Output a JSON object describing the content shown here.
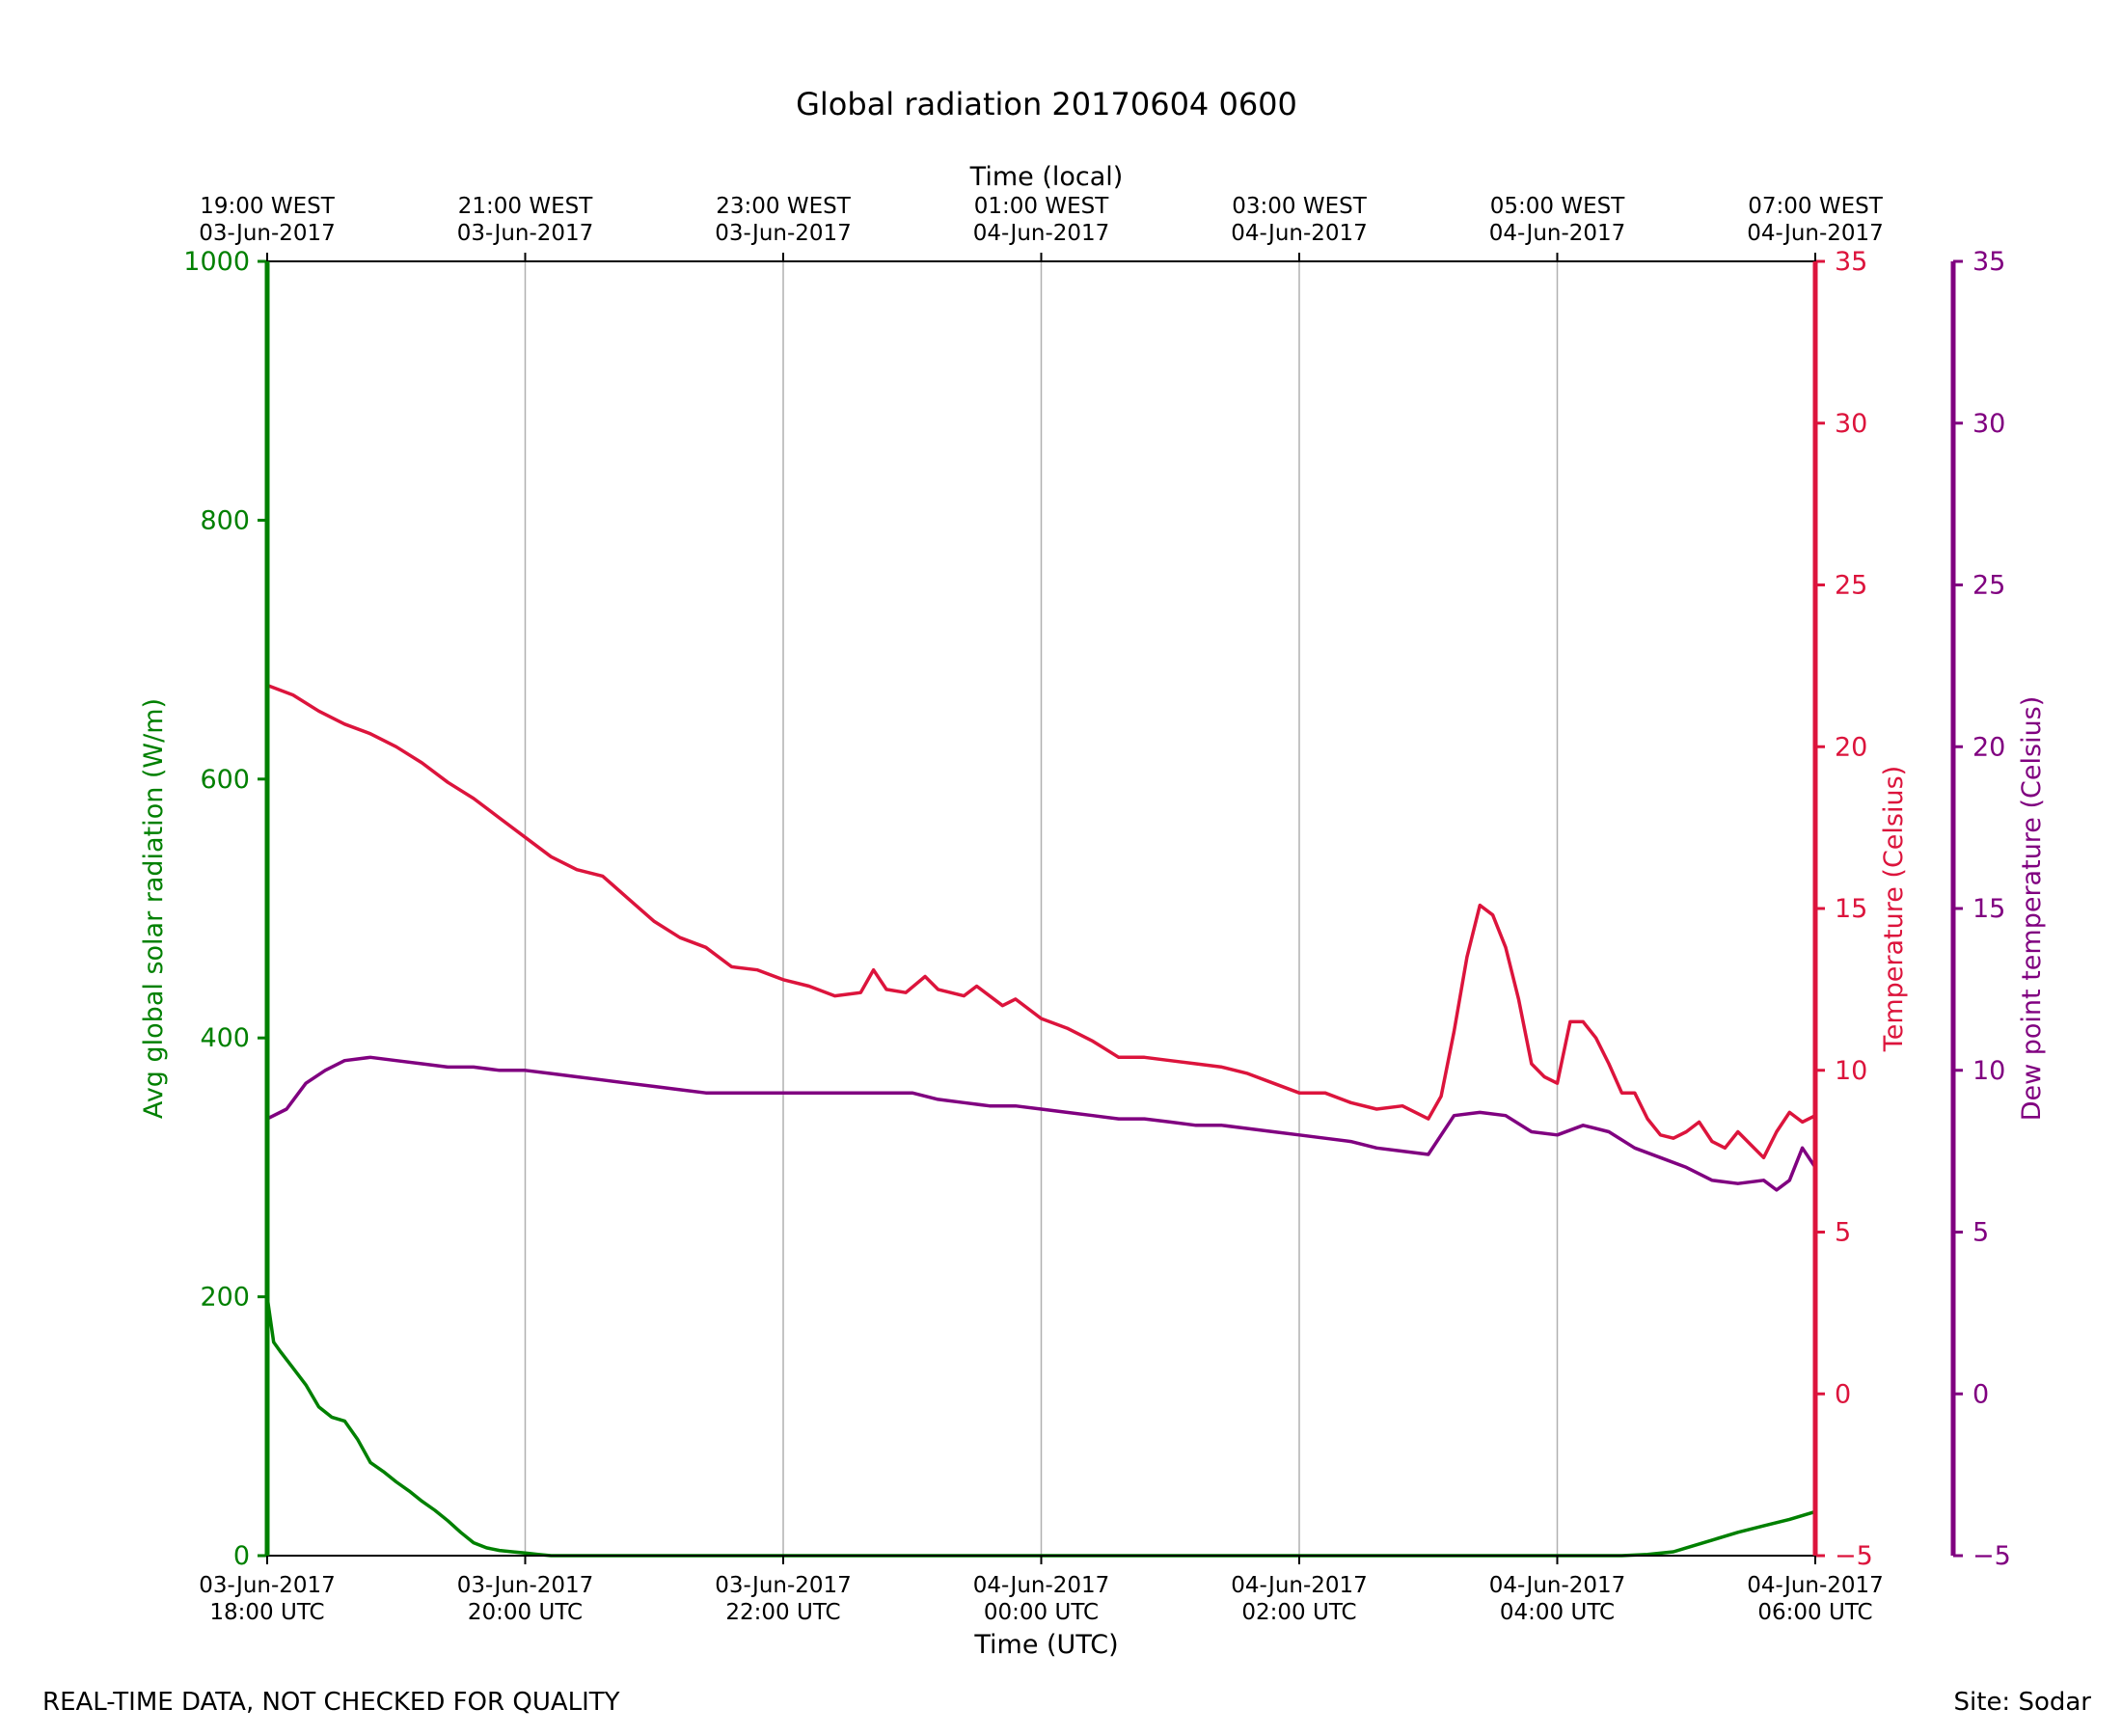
{
  "chart_data": {
    "type": "line",
    "title": "Global radiation 20170604 0600",
    "xlabel": "Time (UTC)",
    "xlabel_top": "Time (local)",
    "x_unit": "hours since 03-Jun-2017 18:00 UTC",
    "xlim": [
      0,
      12
    ],
    "x_ticks_bottom": [
      {
        "x": 0,
        "line1": "03-Jun-2017",
        "line2": "18:00 UTC"
      },
      {
        "x": 2,
        "line1": "03-Jun-2017",
        "line2": "20:00 UTC"
      },
      {
        "x": 4,
        "line1": "03-Jun-2017",
        "line2": "22:00 UTC"
      },
      {
        "x": 6,
        "line1": "04-Jun-2017",
        "line2": "00:00 UTC"
      },
      {
        "x": 8,
        "line1": "04-Jun-2017",
        "line2": "02:00 UTC"
      },
      {
        "x": 10,
        "line1": "04-Jun-2017",
        "line2": "04:00 UTC"
      },
      {
        "x": 12,
        "line1": "04-Jun-2017",
        "line2": "06:00 UTC"
      }
    ],
    "x_ticks_top": [
      {
        "x": 0,
        "line1": "19:00 WEST",
        "line2": "03-Jun-2017"
      },
      {
        "x": 2,
        "line1": "21:00 WEST",
        "line2": "03-Jun-2017"
      },
      {
        "x": 4,
        "line1": "23:00 WEST",
        "line2": "03-Jun-2017"
      },
      {
        "x": 6,
        "line1": "01:00 WEST",
        "line2": "04-Jun-2017"
      },
      {
        "x": 8,
        "line1": "03:00 WEST",
        "line2": "04-Jun-2017"
      },
      {
        "x": 10,
        "line1": "05:00 WEST",
        "line2": "04-Jun-2017"
      },
      {
        "x": 12,
        "line1": "07:00 WEST",
        "line2": "04-Jun-2017"
      }
    ],
    "grid": "vertical",
    "axes": [
      {
        "id": "rad",
        "label": "Avg global solar radiation (W/m)",
        "side": "left",
        "color": "#008000",
        "ylim": [
          0,
          1000
        ],
        "ticks": [
          0,
          200,
          400,
          600,
          800,
          1000
        ]
      },
      {
        "id": "temp",
        "label": "Temperature (Celsius)",
        "side": "right",
        "color": "#dc143c",
        "ylim": [
          -5,
          35
        ],
        "ticks": [
          -5,
          0,
          5,
          10,
          15,
          20,
          25,
          30,
          35
        ]
      },
      {
        "id": "dew",
        "label": "Dew point temperature (Celsius)",
        "side": "right-outer",
        "color": "#800080",
        "ylim": [
          -5,
          35
        ],
        "ticks": [
          -5,
          0,
          5,
          10,
          15,
          20,
          25,
          30,
          35
        ]
      }
    ],
    "series": [
      {
        "name": "Avg global solar radiation",
        "axis": "rad",
        "color": "#008000",
        "x": [
          0,
          0.05,
          0.1,
          0.2,
          0.3,
          0.4,
          0.5,
          0.6,
          0.7,
          0.8,
          0.9,
          1.0,
          1.1,
          1.2,
          1.3,
          1.4,
          1.5,
          1.6,
          1.7,
          1.8,
          1.9,
          2.0,
          2.1,
          2.2,
          2.4,
          2.6,
          3,
          4,
          5,
          6,
          7,
          8,
          9,
          10,
          10.5,
          10.7,
          10.9,
          11.0,
          11.2,
          11.4,
          11.6,
          11.8,
          12
        ],
        "y": [
          200,
          165,
          158,
          145,
          132,
          115,
          107,
          104,
          90,
          72,
          65,
          57,
          50,
          42,
          35,
          27,
          18,
          10,
          6,
          4,
          3,
          2,
          1,
          0,
          0,
          0,
          0,
          0,
          0,
          0,
          0,
          0,
          0,
          0,
          0,
          1,
          3,
          6,
          12,
          18,
          23,
          28,
          34
        ]
      },
      {
        "name": "Temperature",
        "axis": "temp",
        "color": "#dc143c",
        "x": [
          0,
          0.2,
          0.4,
          0.6,
          0.8,
          1.0,
          1.2,
          1.4,
          1.6,
          1.8,
          2.0,
          2.2,
          2.4,
          2.6,
          2.8,
          3.0,
          3.2,
          3.4,
          3.6,
          3.8,
          4.0,
          4.2,
          4.4,
          4.6,
          4.7,
          4.8,
          4.95,
          5.1,
          5.2,
          5.4,
          5.5,
          5.7,
          5.8,
          6.0,
          6.2,
          6.4,
          6.6,
          6.8,
          7.0,
          7.2,
          7.4,
          7.6,
          7.8,
          8.0,
          8.2,
          8.4,
          8.6,
          8.8,
          9.0,
          9.1,
          9.2,
          9.3,
          9.4,
          9.5,
          9.6,
          9.7,
          9.8,
          9.9,
          10.0,
          10.1,
          10.2,
          10.3,
          10.4,
          10.5,
          10.6,
          10.7,
          10.8,
          10.9,
          11.0,
          11.1,
          11.2,
          11.3,
          11.4,
          11.5,
          11.6,
          11.7,
          11.8,
          11.9,
          12.0
        ],
        "y": [
          21.9,
          21.6,
          21.1,
          20.7,
          20.4,
          20.0,
          19.5,
          18.9,
          18.4,
          17.8,
          17.2,
          16.6,
          16.2,
          16.0,
          15.3,
          14.6,
          14.1,
          13.8,
          13.2,
          13.1,
          12.8,
          12.6,
          12.3,
          12.4,
          13.1,
          12.5,
          12.4,
          12.9,
          12.5,
          12.3,
          12.6,
          12.0,
          12.2,
          11.6,
          11.3,
          10.9,
          10.4,
          10.4,
          10.3,
          10.2,
          10.1,
          9.9,
          9.6,
          9.3,
          9.3,
          9.0,
          8.8,
          8.9,
          8.5,
          9.2,
          11.2,
          13.5,
          15.1,
          14.8,
          13.8,
          12.2,
          10.2,
          9.8,
          9.6,
          11.5,
          11.5,
          11.0,
          10.2,
          9.3,
          9.3,
          8.5,
          8.0,
          7.9,
          8.1,
          8.4,
          7.8,
          7.6,
          8.1,
          7.7,
          7.3,
          8.1,
          8.7,
          8.4,
          8.6
        ]
      },
      {
        "name": "Dew point temperature",
        "axis": "dew",
        "color": "#800080",
        "x": [
          0,
          0.15,
          0.3,
          0.45,
          0.6,
          0.8,
          1.0,
          1.2,
          1.4,
          1.6,
          1.8,
          2.0,
          2.2,
          2.4,
          2.6,
          2.8,
          3.0,
          3.2,
          3.4,
          3.6,
          3.8,
          4.0,
          4.2,
          4.4,
          4.6,
          4.8,
          5.0,
          5.2,
          5.4,
          5.6,
          5.8,
          6.0,
          6.2,
          6.4,
          6.6,
          6.8,
          7.0,
          7.2,
          7.4,
          7.6,
          7.8,
          8.0,
          8.2,
          8.4,
          8.6,
          8.8,
          9.0,
          9.2,
          9.4,
          9.6,
          9.8,
          10.0,
          10.2,
          10.4,
          10.6,
          10.8,
          11.0,
          11.2,
          11.4,
          11.6,
          11.7,
          11.8,
          11.9,
          12.0
        ],
        "y": [
          8.5,
          8.8,
          9.6,
          10.0,
          10.3,
          10.4,
          10.3,
          10.2,
          10.1,
          10.1,
          10.0,
          10.0,
          9.9,
          9.8,
          9.7,
          9.6,
          9.5,
          9.4,
          9.3,
          9.3,
          9.3,
          9.3,
          9.3,
          9.3,
          9.3,
          9.3,
          9.3,
          9.1,
          9.0,
          8.9,
          8.9,
          8.8,
          8.7,
          8.6,
          8.5,
          8.5,
          8.4,
          8.3,
          8.3,
          8.2,
          8.1,
          8.0,
          7.9,
          7.8,
          7.6,
          7.5,
          7.4,
          8.6,
          8.7,
          8.6,
          8.1,
          8.0,
          8.3,
          8.1,
          7.6,
          7.3,
          7.0,
          6.6,
          6.5,
          6.6,
          6.3,
          6.6,
          7.6,
          7.0
        ]
      }
    ]
  },
  "footer": {
    "left": "REAL-TIME DATA, NOT CHECKED FOR QUALITY",
    "right": "Site: Sodar"
  }
}
